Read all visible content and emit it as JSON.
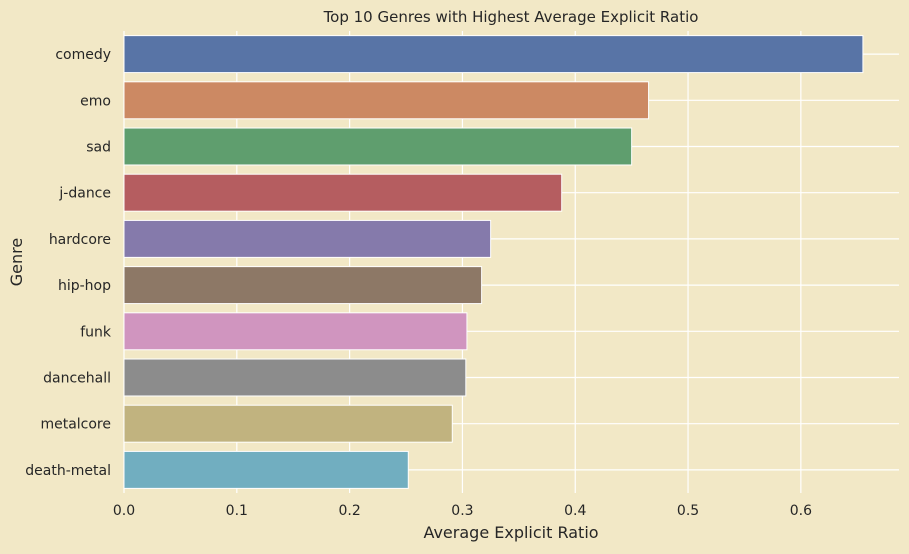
{
  "chart_data": {
    "type": "bar",
    "orientation": "horizontal",
    "title": "Top 10 Genres with Highest Average Explicit Ratio",
    "xlabel": "Average Explicit Ratio",
    "ylabel": "Genre",
    "xlim": [
      0,
      0.687
    ],
    "xticks": [
      "0.0",
      "0.1",
      "0.2",
      "0.3",
      "0.4",
      "0.5",
      "0.6"
    ],
    "grid": true,
    "categories": [
      "comedy",
      "emo",
      "sad",
      "j-dance",
      "hardcore",
      "hip-hop",
      "funk",
      "dancehall",
      "metalcore",
      "death-metal"
    ],
    "values": [
      0.655,
      0.465,
      0.45,
      0.388,
      0.325,
      0.317,
      0.304,
      0.303,
      0.291,
      0.252
    ],
    "colors": [
      "#5874A6",
      "#CC8963",
      "#5F9E6E",
      "#B55D60",
      "#857AAB",
      "#8D7866",
      "#D095BF",
      "#8C8C8C",
      "#C1B37F",
      "#71AEC0"
    ]
  }
}
